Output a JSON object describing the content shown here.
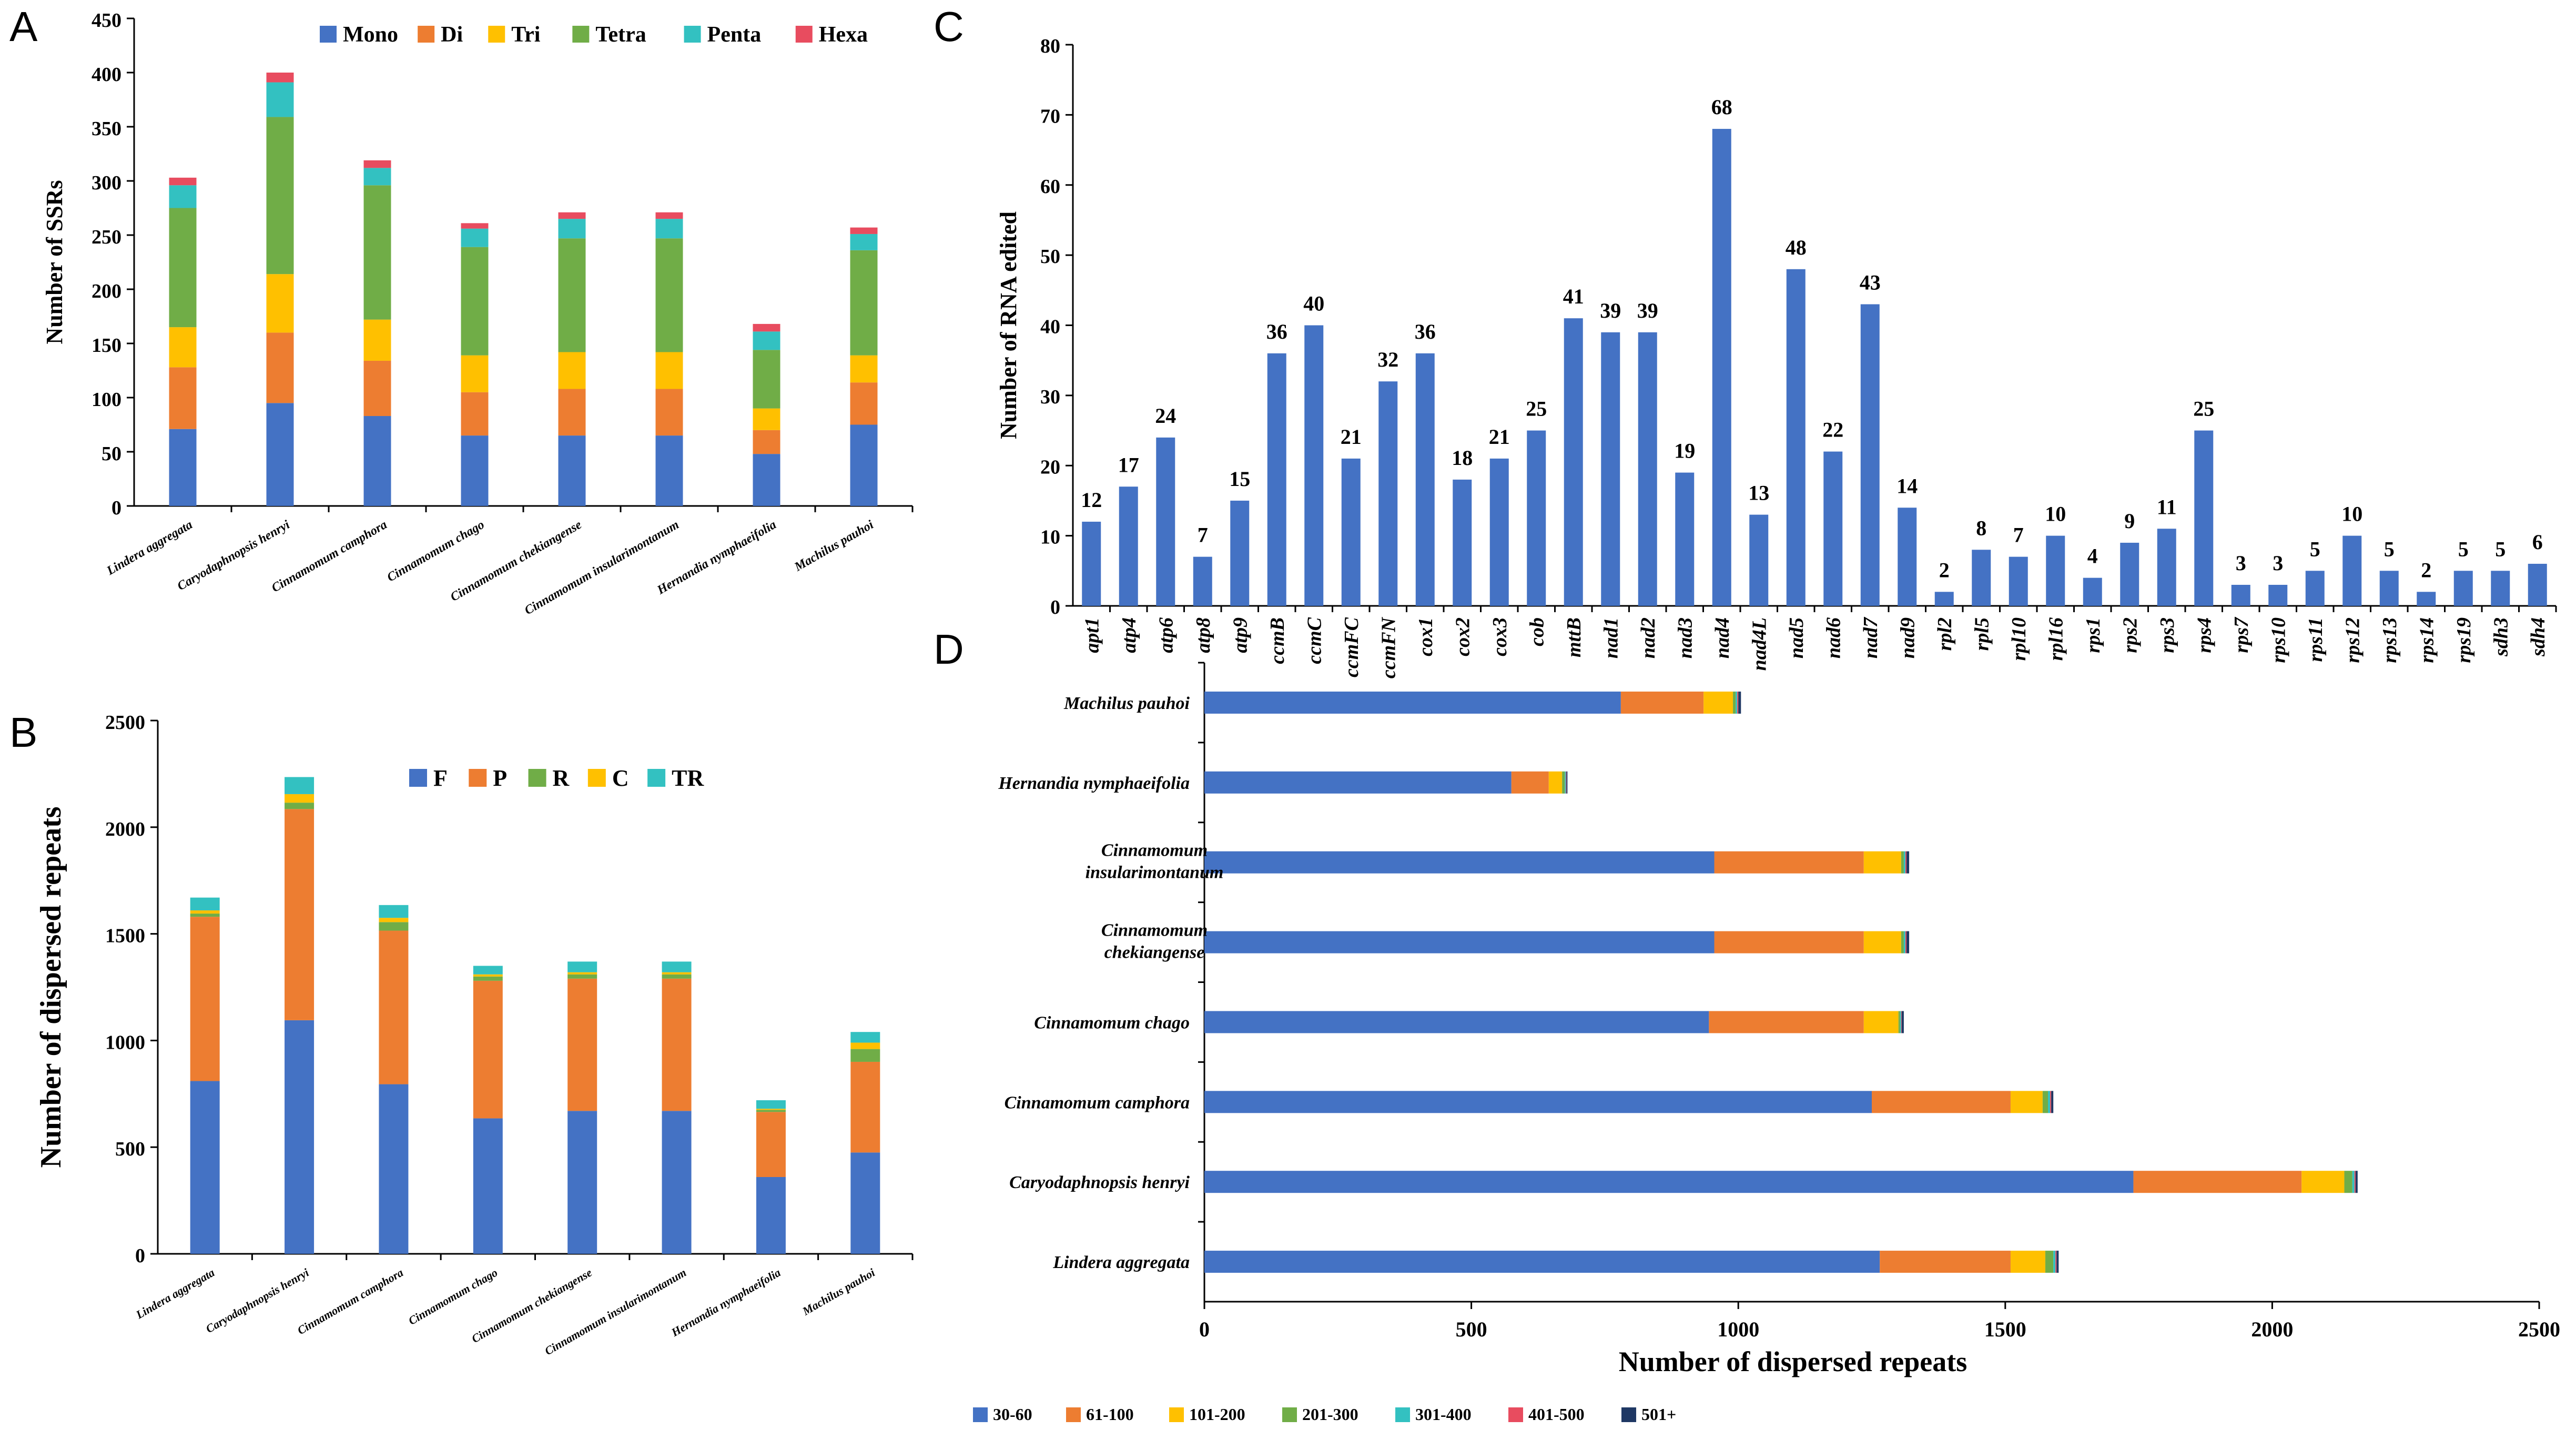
{
  "colors": {
    "Mono": "#4472C4",
    "Di": "#ED7D31",
    "Tri": "#FFC000",
    "Tetra": "#70AD47",
    "Penta": "#33C1C1",
    "Hexa": "#E84C5F",
    "F": "#4472C4",
    "P": "#ED7D31",
    "R": "#70AD47",
    "C": "#FFC000",
    "TR": "#33C1C1",
    "c30_60": "#4472C4",
    "c61_100": "#ED7D31",
    "c101_200": "#FFC000",
    "c201_300": "#70AD47",
    "c301_400": "#33C1C1",
    "c401_500": "#E84C5F",
    "c501p": "#1F3864",
    "axis": "#000000"
  },
  "panels": {
    "a": "A",
    "b": "B",
    "c": "C",
    "d": "D"
  },
  "chart_data": [
    {
      "id": "A",
      "type": "bar",
      "stacked": true,
      "title": "",
      "xlabel": "",
      "ylabel": "Number of SSRs",
      "ylim": [
        0,
        450
      ],
      "yticks": [
        "0",
        "50",
        "100",
        "150",
        "200",
        "250",
        "300",
        "350",
        "400",
        "450"
      ],
      "categories": [
        "Lindera aggregata",
        "Caryodaphnopsis henryi",
        "Cinnamomum camphora",
        "Cinnamomum chago",
        "Cinnamomum chekiangense",
        "Cinnamomum insularimontanum",
        "Hernandia nymphaeifolia",
        "Machilus pauhoi"
      ],
      "legend": [
        "Mono",
        "Di",
        "Tri",
        "Tetra",
        "Penta",
        "Hexa"
      ],
      "legend_position": "top",
      "series": [
        {
          "name": "Mono",
          "values": [
            71,
            95,
            83,
            65,
            65,
            65,
            48,
            75
          ]
        },
        {
          "name": "Di",
          "values": [
            57,
            65,
            51,
            40,
            43,
            43,
            22,
            39
          ]
        },
        {
          "name": "Tri",
          "values": [
            37,
            54,
            38,
            34,
            34,
            34,
            20,
            25
          ]
        },
        {
          "name": "Tetra",
          "values": [
            110,
            145,
            124,
            100,
            105,
            105,
            54,
            97
          ]
        },
        {
          "name": "Penta",
          "values": [
            21,
            32,
            16,
            17,
            18,
            18,
            17,
            15
          ]
        },
        {
          "name": "Hexa",
          "values": [
            7,
            9,
            7,
            5,
            6,
            6,
            7,
            6
          ]
        }
      ]
    },
    {
      "id": "B",
      "type": "bar",
      "stacked": true,
      "title": "",
      "xlabel": "",
      "ylabel": "Number of dispersed repeats",
      "ylim": [
        0,
        2500
      ],
      "yticks": [
        "0",
        "500",
        "1000",
        "1500",
        "2000",
        "2500"
      ],
      "categories": [
        "Lindera aggregata",
        "Caryodaphnopsis henryi",
        "Cinnamomum camphora",
        "Cinnamomum chago",
        "Cinnamomum chekiangense",
        "Cinnamomum insularimontanum",
        "Hernandia nymphaeifolia",
        "Machilus pauhoi"
      ],
      "legend": [
        "F",
        "P",
        "R",
        "C",
        "TR"
      ],
      "legend_position": "top",
      "series": [
        {
          "name": "F",
          "values": [
            810,
            1095,
            795,
            635,
            670,
            670,
            360,
            475
          ]
        },
        {
          "name": "P",
          "values": [
            770,
            990,
            720,
            645,
            620,
            620,
            305,
            425
          ]
        },
        {
          "name": "R",
          "values": [
            15,
            30,
            40,
            20,
            20,
            20,
            10,
            60
          ]
        },
        {
          "name": "C",
          "values": [
            15,
            40,
            20,
            10,
            10,
            10,
            5,
            30
          ]
        },
        {
          "name": "TR",
          "values": [
            60,
            80,
            60,
            40,
            50,
            50,
            40,
            50
          ]
        }
      ]
    },
    {
      "id": "C",
      "type": "bar",
      "stacked": false,
      "title": "",
      "xlabel": "",
      "ylabel": "Number of RNA edited",
      "ylim": [
        0,
        80
      ],
      "yticks": [
        "0",
        "10",
        "20",
        "30",
        "40",
        "50",
        "60",
        "70",
        "80"
      ],
      "categories": [
        "apt1",
        "atp4",
        "atp6",
        "atp8",
        "atp9",
        "ccmB",
        "ccmC",
        "ccmFC",
        "ccmFN",
        "cox1",
        "cox2",
        "cox3",
        "cob",
        "mttB",
        "nad1",
        "nad2",
        "nad3",
        "nad4",
        "nad4L",
        "nad5",
        "nad6",
        "nad7",
        "nad9",
        "rpl2",
        "rpl5",
        "rpl10",
        "rpl16",
        "rps1",
        "rps2",
        "rps3",
        "rps4",
        "rps7",
        "rps10",
        "rps11",
        "rps12",
        "rps13",
        "rps14",
        "rps19",
        "sdh3",
        "sdh4"
      ],
      "values": [
        12,
        17,
        24,
        7,
        15,
        36,
        40,
        21,
        32,
        36,
        18,
        21,
        25,
        41,
        39,
        39,
        19,
        68,
        13,
        48,
        22,
        43,
        14,
        2,
        8,
        7,
        10,
        4,
        9,
        11,
        25,
        3,
        3,
        5,
        10,
        5,
        2,
        5,
        5,
        6
      ],
      "data_labels": [
        "12",
        "17",
        "24",
        "7",
        "15",
        "36",
        "40",
        "21",
        "32",
        "36",
        "18",
        "21",
        "25",
        "41",
        "39",
        "39",
        "19",
        "68",
        "13",
        "48",
        "22",
        "43",
        "14",
        "2",
        "8",
        "7",
        "10",
        "4",
        "9",
        "11",
        "25",
        "3",
        "3",
        "5",
        "10",
        "5",
        "2",
        "5",
        "5",
        "6"
      ],
      "series_color": "#4472C4"
    },
    {
      "id": "D",
      "type": "bar",
      "orientation": "horizontal",
      "stacked": true,
      "title": "",
      "xlabel": "Number of dispersed repeats",
      "ylabel": "",
      "xlim": [
        0,
        2500
      ],
      "xticks": [
        "0",
        "500",
        "1000",
        "1500",
        "2000",
        "2500"
      ],
      "categories": [
        {
          "line1": "Machilus pauhoi",
          "line2": ""
        },
        {
          "line1": "Hernandia nymphaeifolia",
          "line2": ""
        },
        {
          "line1": "Cinnamomum",
          "line2": "insularimontanum"
        },
        {
          "line1": "Cinnamomum",
          "line2": "chekiangense"
        },
        {
          "line1": "Cinnamomum chago",
          "line2": ""
        },
        {
          "line1": "Cinnamomum camphora",
          "line2": ""
        },
        {
          "line1": "Caryodaphnopsis henryi",
          "line2": ""
        },
        {
          "line1": "Lindera aggregata",
          "line2": ""
        }
      ],
      "legend": [
        "30-60",
        "61-100",
        "101-200",
        "201-300",
        "301-400",
        "401-500",
        "501+"
      ],
      "legend_position": "bottom",
      "series": [
        {
          "name": "30-60",
          "values": [
            780,
            575,
            955,
            955,
            945,
            1250,
            1740,
            1265
          ]
        },
        {
          "name": "61-100",
          "values": [
            155,
            70,
            280,
            280,
            290,
            260,
            315,
            245
          ]
        },
        {
          "name": "101-200",
          "values": [
            55,
            25,
            70,
            70,
            65,
            60,
            80,
            65
          ]
        },
        {
          "name": "201-300",
          "values": [
            5,
            5,
            5,
            5,
            3,
            10,
            15,
            15
          ]
        },
        {
          "name": "301-400",
          "values": [
            3,
            2,
            3,
            3,
            2,
            4,
            4,
            4
          ]
        },
        {
          "name": "401-500",
          "values": [
            2,
            1,
            2,
            2,
            1,
            2,
            2,
            2
          ]
        },
        {
          "name": "501+",
          "values": [
            5,
            2,
            5,
            5,
            4,
            4,
            4,
            4
          ]
        }
      ]
    }
  ]
}
